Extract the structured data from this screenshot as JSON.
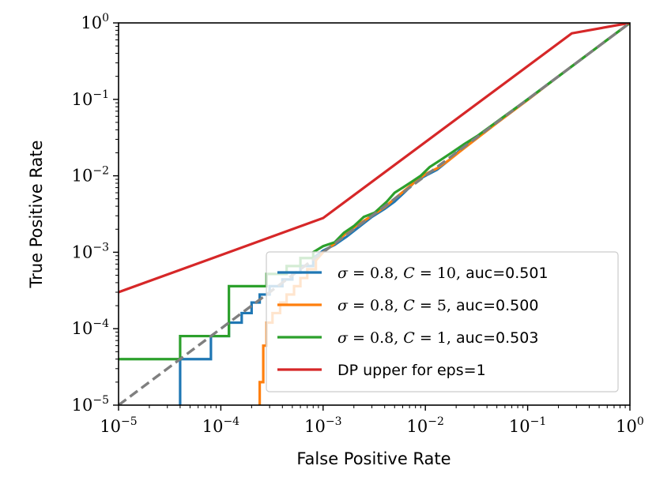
{
  "chart_data": {
    "type": "line",
    "title": "",
    "xlabel": "False Positive Rate",
    "ylabel": "True Positive Rate",
    "xscale": "log",
    "yscale": "log",
    "xlim": [
      1e-05,
      1
    ],
    "ylim": [
      1e-05,
      1
    ],
    "x_ticks": [
      {
        "base": "10",
        "exp": "−5"
      },
      {
        "base": "10",
        "exp": "−4"
      },
      {
        "base": "10",
        "exp": "−3"
      },
      {
        "base": "10",
        "exp": "−2"
      },
      {
        "base": "10",
        "exp": "−1"
      },
      {
        "base": "10",
        "exp": "0"
      }
    ],
    "y_ticks": [
      {
        "base": "10",
        "exp": "−5"
      },
      {
        "base": "10",
        "exp": "−4"
      },
      {
        "base": "10",
        "exp": "−3"
      },
      {
        "base": "10",
        "exp": "−2"
      },
      {
        "base": "10",
        "exp": "−1"
      },
      {
        "base": "10",
        "exp": "0"
      }
    ],
    "legend_position": "lower-right",
    "series": [
      {
        "name": "σ = 0.8, C = 10, auc=0.501",
        "legend": {
          "sigma": "σ",
          "sigma_val": " = 0.8, ",
          "c": "C",
          "c_val": " = 10, ",
          "auc": "auc=0.501"
        },
        "color": "#1f77b4",
        "step": true,
        "x": [
          4e-05,
          4e-05,
          8e-05,
          8e-05,
          0.00012,
          0.00012,
          0.00016,
          0.00016,
          0.0002,
          0.0002,
          0.00024,
          0.00024,
          0.0003,
          0.0003,
          0.0004,
          0.0004,
          0.0005,
          0.0005,
          0.0006,
          0.0006,
          0.0008,
          0.0008,
          0.001,
          0.0013,
          0.0017,
          0.0022,
          0.003,
          0.004,
          0.005,
          0.0065,
          0.008,
          0.01,
          0.013,
          0.017,
          0.022,
          0.03,
          0.05,
          0.1,
          0.2,
          0.5,
          1.0
        ],
        "y": [
          1e-05,
          4e-05,
          4e-05,
          8e-05,
          8e-05,
          0.00012,
          0.00012,
          0.00016,
          0.00016,
          0.00022,
          0.00022,
          0.00028,
          0.00028,
          0.00036,
          0.00036,
          0.00044,
          0.00044,
          0.00054,
          0.00054,
          0.00066,
          0.00066,
          0.00084,
          0.00105,
          0.00125,
          0.0016,
          0.0021,
          0.0029,
          0.0037,
          0.0046,
          0.0064,
          0.0085,
          0.01,
          0.012,
          0.016,
          0.022,
          0.03,
          0.05,
          0.1,
          0.2,
          0.5,
          1.0
        ]
      },
      {
        "name": "σ = 0.8, C = 5, auc=0.500",
        "legend": {
          "sigma": "σ",
          "sigma_val": " = 0.8, ",
          "c": "C",
          "c_val": " = 5, ",
          "auc": "auc=0.500"
        },
        "color": "#ff7f0e",
        "step": true,
        "x": [
          0.00024,
          0.00024,
          0.00026,
          0.00026,
          0.00028,
          0.00028,
          0.00032,
          0.00032,
          0.00038,
          0.00038,
          0.00044,
          0.00044,
          0.00052,
          0.00052,
          0.0006,
          0.0006,
          0.0007,
          0.0007,
          0.00085,
          0.00085,
          0.001,
          0.0013,
          0.0017,
          0.0022,
          0.003,
          0.004,
          0.005,
          0.0065,
          0.008,
          0.01,
          0.013,
          0.017,
          0.022,
          0.03,
          0.05,
          0.1,
          0.2,
          0.5,
          1.0
        ],
        "y": [
          1e-05,
          2e-05,
          2e-05,
          6e-05,
          6e-05,
          0.00012,
          0.00012,
          0.00016,
          0.00016,
          0.00022,
          0.00022,
          0.00028,
          0.00028,
          0.00036,
          0.00036,
          0.00046,
          0.00046,
          0.0006,
          0.0006,
          0.00078,
          0.001,
          0.0013,
          0.0018,
          0.0023,
          0.003,
          0.0039,
          0.005,
          0.0067,
          0.0084,
          0.0105,
          0.0125,
          0.016,
          0.021,
          0.029,
          0.049,
          0.098,
          0.2,
          0.5,
          1.0
        ]
      },
      {
        "name": "σ = 0.8, C = 1, auc=0.503",
        "legend": {
          "sigma": "σ",
          "sigma_val": " = 0.8, ",
          "c": "C",
          "c_val": " = 1, ",
          "auc": "auc=0.503"
        },
        "color": "#2ca02c",
        "step": true,
        "x": [
          1e-05,
          4e-05,
          4e-05,
          0.00012,
          0.00012,
          0.00028,
          0.00028,
          0.00044,
          0.00044,
          0.0006,
          0.0006,
          0.0008,
          0.0008,
          0.001,
          0.0013,
          0.0016,
          0.002,
          0.0025,
          0.0032,
          0.0042,
          0.005,
          0.006,
          0.0075,
          0.009,
          0.011,
          0.014,
          0.018,
          0.024,
          0.032,
          0.05,
          0.1,
          0.2,
          0.5,
          1.0
        ],
        "y": [
          4e-05,
          4e-05,
          8e-05,
          8e-05,
          0.00036,
          0.00036,
          0.00052,
          0.00052,
          0.00066,
          0.00066,
          0.00084,
          0.00084,
          0.001,
          0.0012,
          0.00135,
          0.0018,
          0.0022,
          0.0029,
          0.0033,
          0.0046,
          0.006,
          0.007,
          0.0085,
          0.01,
          0.013,
          0.016,
          0.02,
          0.026,
          0.033,
          0.051,
          0.1,
          0.2,
          0.5,
          1.0
        ]
      },
      {
        "name": "DP upper for eps=1",
        "legend": {
          "plain": "DP upper for eps=1"
        },
        "color": "#d62728",
        "step": false,
        "x": [
          1e-05,
          0.001,
          0.27,
          1.0
        ],
        "y": [
          0.0003,
          0.0028,
          0.73,
          1.0
        ]
      }
    ],
    "reference_line": {
      "color": "#7f7f7f",
      "style": "dashed",
      "x": [
        1e-05,
        1.0
      ],
      "y": [
        1e-05,
        1.0
      ]
    }
  }
}
